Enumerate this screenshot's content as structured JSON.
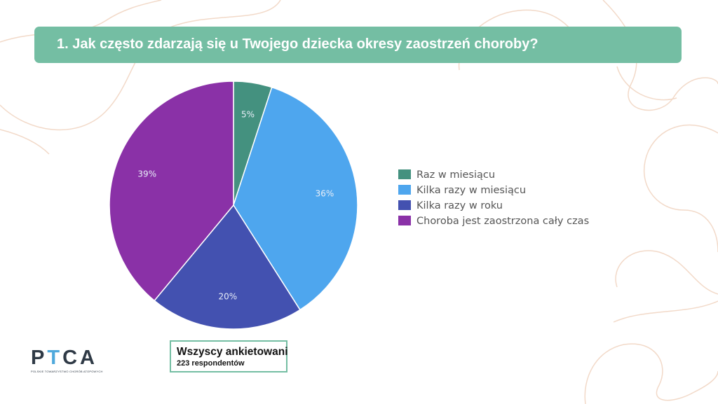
{
  "title": "1. Jak często zdarzają się u Twojego dziecka okresy zaostrzeń choroby?",
  "logo": {
    "text": "PTCA",
    "subtitle": "POLSKIE TOWARZYSTWO CHORÓB ATOPOWYCH"
  },
  "respondents": {
    "label": "Wszyscy ankietowani",
    "count": "223 respondentów"
  },
  "chart_data": {
    "type": "pie",
    "categories": [
      "Raz w miesiącu",
      "Kilka razy w miesiącu",
      "Kilka razy w roku",
      "Choroba jest zaostrzona cały czas"
    ],
    "values": [
      5,
      36,
      20,
      39
    ],
    "value_labels": [
      "5%",
      "36%",
      "20%",
      "39%"
    ],
    "colors": [
      "#44917f",
      "#4ea6ee",
      "#4351b0",
      "#8a31a7"
    ],
    "legend_position": "right"
  }
}
